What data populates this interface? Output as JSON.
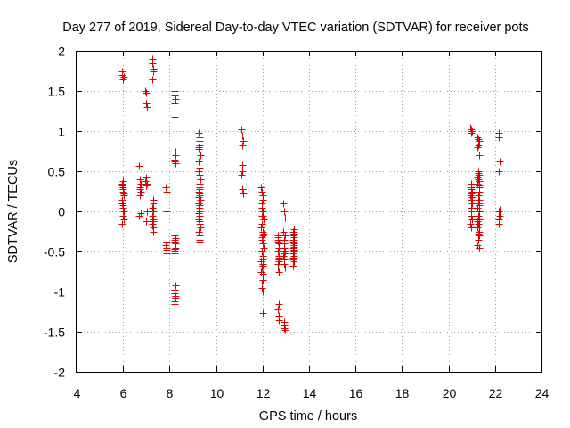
{
  "chart_data": {
    "type": "scatter",
    "title": "Day 277 of 2019, Sidereal Day-to-day VTEC variation (SDTVAR) for receiver pots",
    "xlabel": "GPS time / hours",
    "ylabel": "SDTVAR / TECUs",
    "xlim": [
      4,
      24
    ],
    "ylim": [
      -2,
      2
    ],
    "xticks": [
      "4",
      "6",
      "8",
      "10",
      "12",
      "14",
      "16",
      "18",
      "20",
      "22",
      "24"
    ],
    "yticks": [
      "-2",
      "-1.5",
      "-1",
      "-0.5",
      "0",
      "0.5",
      "1",
      "1.5",
      "2"
    ],
    "grid": true,
    "marker": "+",
    "marker_color": "#e00000",
    "series": [
      {
        "name": "SDTVAR",
        "x": [
          5.95,
          5.97,
          6.0,
          6.02,
          5.98,
          5.96,
          6.01,
          5.99,
          6.03,
          5.97,
          5.95,
          6.0,
          6.02,
          5.98,
          6.01,
          6.03,
          5.96,
          6.0,
          5.99,
          6.02,
          5.97,
          5.95,
          6.7,
          6.72,
          6.75,
          6.73,
          6.71,
          6.74,
          6.76,
          6.7,
          6.72,
          6.95,
          6.97,
          7.0,
          7.02,
          6.98,
          6.96,
          7.01,
          6.99,
          7.03,
          6.97,
          7.25,
          7.27,
          7.3,
          7.28,
          7.26,
          7.29,
          7.31,
          7.25,
          7.3,
          7.27,
          7.28,
          7.26,
          7.29,
          7.3,
          7.31,
          7.27,
          7.28,
          7.26,
          7.3,
          7.85,
          7.87,
          7.86,
          7.88,
          7.85,
          7.87,
          7.86,
          7.88,
          8.2,
          8.22,
          8.25,
          8.23,
          8.21,
          8.24,
          8.26,
          8.2,
          8.22,
          8.25,
          8.23,
          8.21,
          8.24,
          8.26,
          8.2,
          8.22,
          8.25,
          8.23,
          8.21,
          8.24,
          8.26,
          8.2,
          8.22,
          8.25,
          8.23,
          8.21,
          9.25,
          9.27,
          9.3,
          9.28,
          9.26,
          9.29,
          9.31,
          9.25,
          9.27,
          9.3,
          9.28,
          9.26,
          9.29,
          9.31,
          9.25,
          9.27,
          9.3,
          9.28,
          9.26,
          9.29,
          9.31,
          9.25,
          9.27,
          9.3,
          9.28,
          9.26,
          9.29,
          9.31,
          9.25,
          9.27,
          9.3,
          9.28,
          9.26,
          9.29,
          9.31,
          9.25,
          9.27,
          9.3,
          9.28,
          9.26,
          11.1,
          11.12,
          11.15,
          11.13,
          11.11,
          11.14,
          11.1,
          11.12,
          11.15,
          11.95,
          11.97,
          12.0,
          12.02,
          11.98,
          11.96,
          12.01,
          11.99,
          12.03,
          11.97,
          11.95,
          12.0,
          12.02,
          11.98,
          12.01,
          12.03,
          11.96,
          12.0,
          11.99,
          12.02,
          11.97,
          11.95,
          12.0,
          12.02,
          11.98,
          11.96,
          12.01,
          11.99,
          12.03,
          11.97,
          11.95,
          12.0,
          12.02,
          11.98,
          12.65,
          12.67,
          12.7,
          12.68,
          12.66,
          12.69,
          12.71,
          12.65,
          12.67,
          12.7,
          12.68,
          12.66,
          12.69,
          12.71,
          12.65,
          12.67,
          12.7,
          12.68,
          12.9,
          12.92,
          12.95,
          12.93,
          12.91,
          12.94,
          12.96,
          12.9,
          12.92,
          12.95,
          12.93,
          12.91,
          12.94,
          12.96,
          12.9,
          12.92,
          12.95,
          12.93,
          13.3,
          13.32,
          13.35,
          13.33,
          13.31,
          13.34,
          13.36,
          13.3,
          13.32,
          13.35,
          13.33,
          13.31,
          13.34,
          13.36,
          13.3,
          13.32,
          13.35,
          13.33,
          13.31,
          13.34,
          20.95,
          20.97,
          21.0,
          20.98,
          20.96,
          20.99,
          21.01,
          20.95,
          20.97,
          21.0,
          20.98,
          20.96,
          20.99,
          21.01,
          20.95,
          20.97,
          21.0,
          20.98,
          20.96,
          20.99,
          21.25,
          21.27,
          21.3,
          21.32,
          21.28,
          21.26,
          21.31,
          21.29,
          21.33,
          21.27,
          21.25,
          21.3,
          21.32,
          21.28,
          21.31,
          21.33,
          21.26,
          21.3,
          21.29,
          21.32,
          21.27,
          21.25,
          21.3,
          21.32,
          21.28,
          21.26,
          21.31,
          21.29,
          21.33,
          21.27,
          21.25,
          21.3,
          21.32,
          21.28,
          21.31,
          21.33,
          21.26,
          21.3,
          22.15,
          22.17,
          22.2,
          22.18,
          22.16,
          22.19,
          22.15,
          22.17,
          22.2,
          22.18
        ],
        "y": [
          1.75,
          1.7,
          1.65,
          1.68,
          0.38,
          0.35,
          0.3,
          0.25,
          0.2,
          0.15,
          0.1,
          0.05,
          0.0,
          -0.05,
          0.28,
          0.22,
          0.12,
          0.08,
          0.02,
          -0.1,
          -0.15,
          0.32,
          0.57,
          0.4,
          0.35,
          0.3,
          0.28,
          0.25,
          -0.02,
          -0.05,
          0.2,
          1.5,
          1.48,
          1.35,
          1.3,
          0.42,
          0.38,
          0.35,
          0.32,
          0.0,
          -0.12,
          1.9,
          1.85,
          1.78,
          1.75,
          1.65,
          0.15,
          0.1,
          0.05,
          0.0,
          -0.05,
          -0.1,
          -0.15,
          -0.2,
          -0.25,
          0.02,
          -0.08,
          -0.12,
          -0.18,
          0.12,
          0.3,
          0.25,
          0.0,
          -0.38,
          -0.42,
          -0.48,
          -0.52,
          -0.45,
          1.5,
          1.45,
          1.4,
          1.35,
          1.18,
          0.75,
          0.7,
          0.65,
          0.62,
          0.6,
          -0.3,
          -0.35,
          -0.4,
          -0.45,
          -0.5,
          -0.52,
          -0.92,
          -0.98,
          -1.02,
          -1.05,
          -1.08,
          -1.12,
          -1.15,
          -0.33,
          -0.38,
          -0.47,
          0.98,
          0.92,
          0.88,
          0.85,
          0.8,
          0.75,
          0.7,
          0.5,
          0.45,
          0.35,
          0.3,
          0.25,
          0.2,
          0.15,
          0.1,
          0.05,
          0.0,
          -0.05,
          -0.1,
          -0.15,
          -0.2,
          -0.25,
          -0.3,
          -0.35,
          -0.38,
          0.62,
          0.55,
          0.4,
          -0.02,
          -0.08,
          -0.12,
          -0.18,
          0.02,
          0.08,
          0.12,
          0.18,
          0.28,
          0.22,
          0.82,
          0.78,
          1.02,
          0.95,
          0.88,
          0.82,
          0.58,
          0.5,
          0.45,
          0.28,
          0.22,
          0.3,
          0.25,
          0.2,
          0.15,
          0.1,
          0.05,
          0.0,
          -0.05,
          -0.1,
          -0.15,
          -0.2,
          -0.25,
          -0.3,
          -0.35,
          -0.4,
          -0.45,
          -0.5,
          -0.55,
          -0.6,
          -0.65,
          -0.7,
          -0.75,
          -0.8,
          -0.85,
          -0.9,
          -0.95,
          -1.0,
          -1.27,
          -0.28,
          -0.32,
          -0.62,
          -0.68,
          -0.78,
          -0.05,
          -0.3,
          -0.35,
          -0.4,
          -0.45,
          -0.5,
          -0.55,
          -0.6,
          -0.65,
          -0.7,
          -0.75,
          -1.15,
          -1.22,
          -1.3,
          -1.35,
          -0.32,
          -0.38,
          -0.58,
          -0.62,
          0.1,
          0.0,
          -0.3,
          -0.35,
          -0.4,
          -0.45,
          -0.5,
          -0.55,
          -0.6,
          -0.7,
          -1.38,
          -1.42,
          -1.45,
          -1.48,
          -0.25,
          -0.65,
          -0.08,
          -0.52,
          -0.25,
          -0.3,
          -0.35,
          -0.4,
          -0.45,
          -0.5,
          -0.55,
          -0.6,
          -0.68,
          -0.28,
          -0.32,
          -0.38,
          -0.42,
          -0.48,
          -0.52,
          -0.58,
          -0.62,
          -0.22,
          -0.36,
          -0.44,
          1.05,
          1.02,
          1.0,
          0.98,
          0.35,
          0.3,
          0.25,
          0.2,
          0.15,
          0.1,
          0.05,
          0.0,
          -0.05,
          -0.1,
          -0.15,
          -0.2,
          0.18,
          0.12,
          0.28,
          0.22,
          0.92,
          0.9,
          0.88,
          0.85,
          0.82,
          0.8,
          0.7,
          0.5,
          0.45,
          0.4,
          0.35,
          0.3,
          0.25,
          0.2,
          0.15,
          0.1,
          0.05,
          0.0,
          -0.05,
          -0.1,
          -0.15,
          -0.2,
          -0.25,
          -0.3,
          -0.35,
          -0.42,
          -0.45,
          -0.28,
          -0.18,
          0.48,
          0.42,
          0.38,
          0.32,
          0.12,
          0.08,
          -0.08,
          -0.12,
          0.02,
          0.98,
          0.92,
          0.62,
          0.5,
          0.0,
          -0.05,
          -0.1,
          -0.15,
          0.02,
          -0.08
        ]
      }
    ]
  }
}
